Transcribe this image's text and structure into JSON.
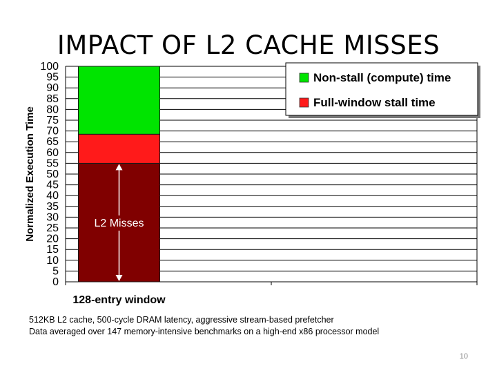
{
  "slide": {
    "title": "IMPACT OF L2 CACHE MISSES",
    "footnotes": [
      "512KB L2 cache, 500-cycle DRAM latency, aggressive stream-based prefetcher",
      "Data averaged over 147 memory-intensive benchmarks on a high-end x86 processor model"
    ],
    "page_number": "10"
  },
  "colors": {
    "non_stall": "#00e400",
    "full_window_stall": "#ff1a1a",
    "l2_misses": "#800000",
    "grid": "#000000"
  },
  "chart_data": {
    "type": "bar",
    "stacked": true,
    "categories": [
      "128-entry window",
      ""
    ],
    "ylabel": "Normalized Execution Time",
    "ylim": [
      0,
      100
    ],
    "yticks": [
      0,
      5,
      10,
      15,
      20,
      25,
      30,
      35,
      40,
      45,
      50,
      55,
      60,
      65,
      70,
      75,
      80,
      85,
      90,
      95,
      100
    ],
    "grid": true,
    "legend_position": "top-right",
    "series": [
      {
        "name": "",
        "values": [
          55,
          0
        ],
        "color": "#800000",
        "label": "L2 Misses"
      },
      {
        "name": "Full-window stall time",
        "values": [
          13.5,
          0
        ],
        "color": "#ff1a1a"
      },
      {
        "name": "Non-stall (compute) time",
        "values": [
          31.5,
          0
        ],
        "color": "#00e400"
      }
    ],
    "legend": [
      "Non-stall (compute) time",
      "Full-window stall time"
    ],
    "annotation": {
      "text": "L2 Misses",
      "arrow_from": 0,
      "arrow_to": 55,
      "category": 0
    }
  }
}
